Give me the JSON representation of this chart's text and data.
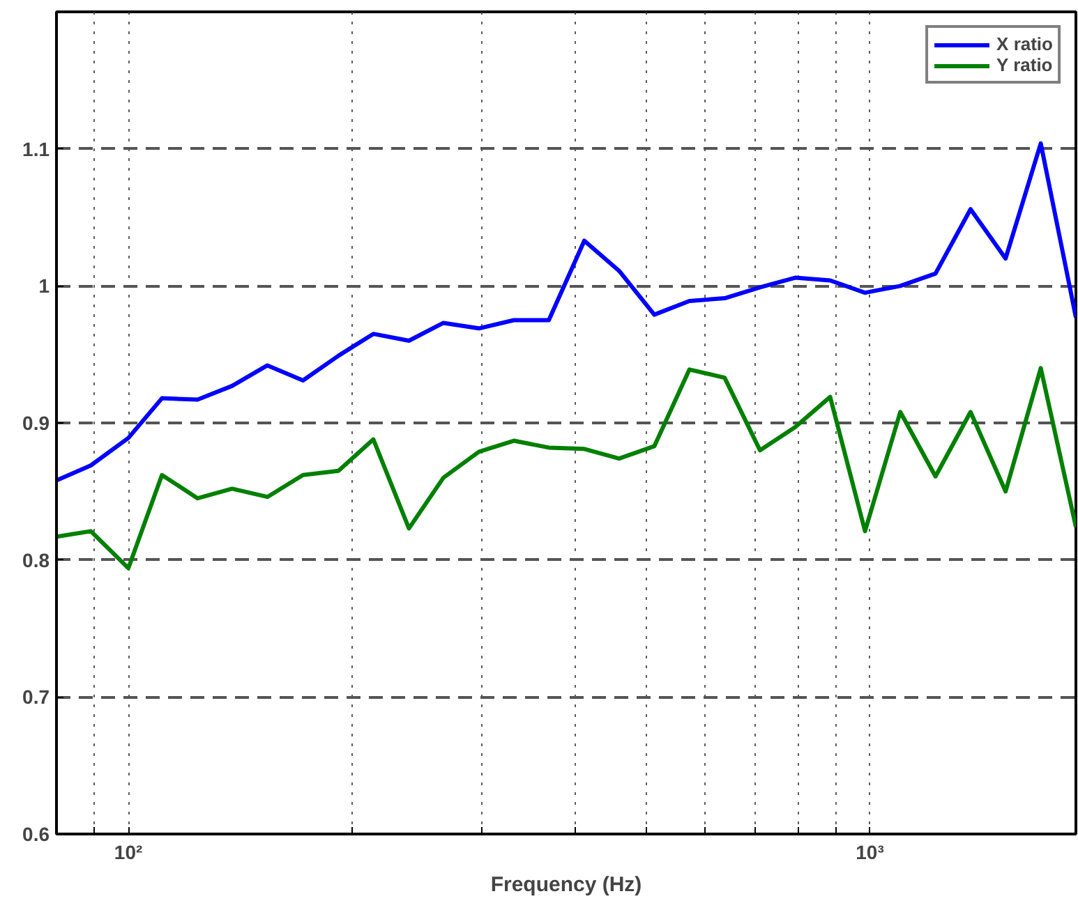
{
  "chart_data": {
    "type": "line",
    "xlabel": "Frequency (Hz)",
    "log": "x",
    "x": [
      80,
      89,
      100,
      111,
      124,
      138,
      154,
      172,
      192,
      214,
      239,
      266,
      297,
      331,
      369,
      412,
      459,
      512,
      571,
      637,
      711,
      793,
      884,
      985,
      1099,
      1226,
      1367,
      1524,
      1700,
      1896
    ],
    "series": [
      {
        "name": "X ratio",
        "color": "#0000ff",
        "values": [
          0.858,
          0.869,
          0.889,
          0.918,
          0.917,
          0.927,
          0.942,
          0.931,
          0.949,
          0.965,
          0.96,
          0.973,
          0.969,
          0.975,
          0.975,
          1.033,
          1.011,
          0.979,
          0.989,
          0.991,
          0.999,
          1.006,
          1.004,
          0.995,
          1.0,
          1.009,
          1.056,
          1.02,
          1.104,
          0.977
        ]
      },
      {
        "name": "Y ratio",
        "color": "#008000",
        "values": [
          0.817,
          0.821,
          0.794,
          0.862,
          0.845,
          0.852,
          0.846,
          0.862,
          0.865,
          0.888,
          0.823,
          0.86,
          0.879,
          0.887,
          0.882,
          0.881,
          0.874,
          0.883,
          0.939,
          0.933,
          0.88,
          0.897,
          0.919,
          0.821,
          0.908,
          0.861,
          0.908,
          0.85,
          0.94,
          0.824
        ]
      }
    ],
    "xlim": [
      80,
      1896
    ],
    "ylim": [
      0.6,
      1.2
    ],
    "xticks": [
      {
        "value": 90,
        "label": null
      },
      {
        "value": 100,
        "label": "10²"
      },
      {
        "value": 200,
        "label": null
      },
      {
        "value": 300,
        "label": null
      },
      {
        "value": 400,
        "label": null
      },
      {
        "value": 500,
        "label": null
      },
      {
        "value": 600,
        "label": null
      },
      {
        "value": 700,
        "label": null
      },
      {
        "value": 800,
        "label": null
      },
      {
        "value": 900,
        "label": null
      },
      {
        "value": 1000,
        "label": "10³"
      }
    ],
    "yticks": [
      0.6,
      0.7,
      0.8,
      0.9,
      1,
      1.1,
      {
        "value": 1.2,
        "label": null
      }
    ],
    "grid": true,
    "legend": "top right",
    "marker": "none",
    "line_style": "solid"
  }
}
